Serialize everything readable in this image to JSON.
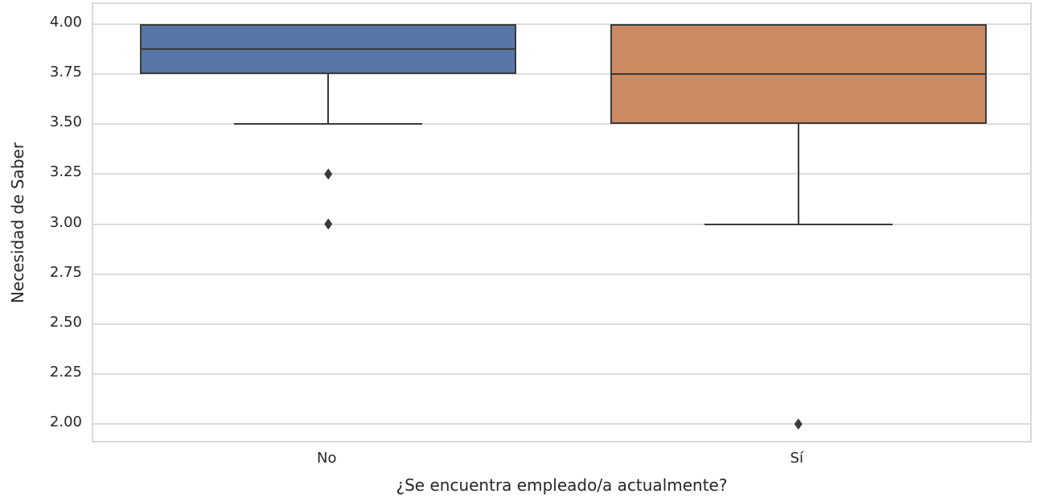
{
  "chart_data": {
    "type": "boxplot",
    "title": "",
    "xlabel": "¿Se encuentra empleado/a actualmente?",
    "ylabel": "Necesidad de Saber",
    "categories": [
      "No",
      "Sí"
    ],
    "ylim": [
      1.9,
      4.1
    ],
    "grid": true,
    "legend": false,
    "yticks": [
      {
        "value": 2.0,
        "label": "2.00"
      },
      {
        "value": 2.25,
        "label": "2.25"
      },
      {
        "value": 2.5,
        "label": "2.50"
      },
      {
        "value": 2.75,
        "label": "2.75"
      },
      {
        "value": 3.0,
        "label": "3.00"
      },
      {
        "value": 3.25,
        "label": "3.25"
      },
      {
        "value": 3.5,
        "label": "3.50"
      },
      {
        "value": 3.75,
        "label": "3.75"
      },
      {
        "value": 4.0,
        "label": "4.00"
      }
    ],
    "series": [
      {
        "category": "No",
        "fill_color": "#5776A7",
        "whisker_low": 3.5,
        "q1": 3.75,
        "median": 3.875,
        "q3": 4.0,
        "whisker_high": 4.0,
        "outliers": [
          3.25,
          3.0
        ]
      },
      {
        "category": "Sí",
        "fill_color": "#CC8A63",
        "whisker_low": 3.0,
        "q1": 3.5,
        "median": 3.75,
        "q3": 4.0,
        "whisker_high": 4.0,
        "outliers": [
          2.0
        ]
      }
    ],
    "style": {
      "line_color": "#3A3A3A",
      "grid_color": "#DCDCDC",
      "spine_color": "#D9D9D9",
      "text_color": "#262626",
      "background": "#FFFFFF",
      "box_width_fraction": 0.8,
      "cap_width_fraction": 0.5
    }
  }
}
